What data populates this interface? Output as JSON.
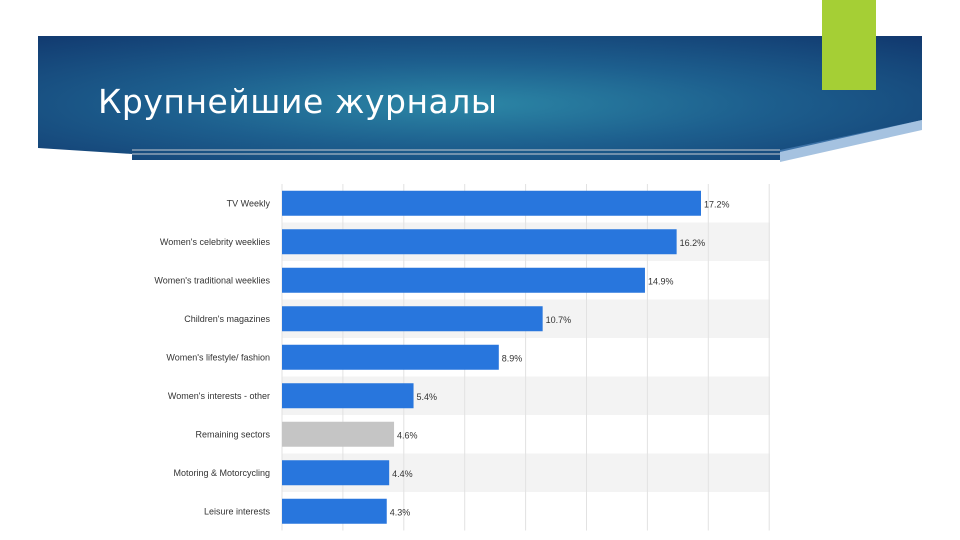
{
  "slide": {
    "title": "Крупнейшие журналы",
    "colors": {
      "header_dark": "#11386e",
      "header_light": "#2c87a6",
      "accent": "#a5cf35"
    }
  },
  "chart_data": {
    "type": "bar",
    "orientation": "horizontal",
    "categories": [
      "TV Weekly",
      "Women's celebrity weeklies",
      "Women's traditional weeklies",
      "Children's magazines",
      "Women's lifestyle/ fashion",
      "Women's interests - other",
      "Remaining sectors",
      "Motoring & Motorcycling",
      "Leisure interests"
    ],
    "values": [
      17.2,
      16.2,
      14.9,
      10.7,
      8.9,
      5.4,
      4.6,
      4.4,
      4.3
    ],
    "value_labels": [
      "17.2%",
      "16.2%",
      "14.9%",
      "10.7%",
      "8.9%",
      "5.4%",
      "4.6%",
      "4.4%",
      "4.3%"
    ],
    "bar_colors": [
      "#2876dd",
      "#2876dd",
      "#2876dd",
      "#2876dd",
      "#2876dd",
      "#2876dd",
      "#c5c5c5",
      "#2876dd",
      "#2876dd"
    ],
    "xlim": [
      0,
      20
    ],
    "grid": true,
    "legend": "none",
    "title": "",
    "xlabel": "",
    "ylabel": ""
  }
}
